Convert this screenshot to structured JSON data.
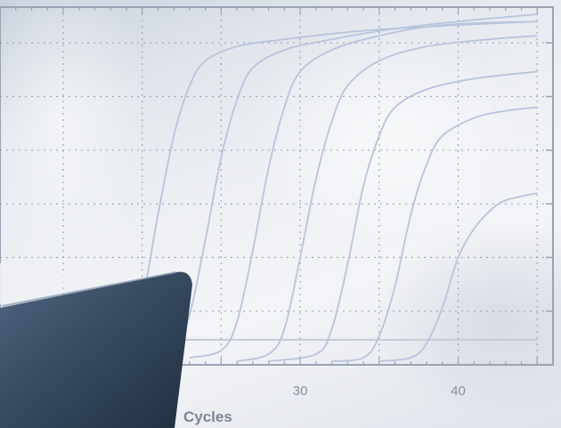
{
  "chart_data": {
    "type": "line",
    "title": "",
    "xlabel": "Cycles",
    "ylabel": "",
    "xlim": [
      11,
      46
    ],
    "ylim": [
      0,
      100
    ],
    "x_ticks": [
      30,
      40
    ],
    "grid": true,
    "legend": "none",
    "line_color": "#b8c4dc",
    "baseline_color": "#c4cad6",
    "series": [
      {
        "values": [
          [
            18,
            3
          ],
          [
            19,
            6
          ],
          [
            20,
            18
          ],
          [
            21,
            42
          ],
          [
            22,
            64
          ],
          [
            23,
            78
          ],
          [
            24,
            85
          ],
          [
            26,
            89
          ],
          [
            29,
            91
          ],
          [
            33,
            93
          ],
          [
            36,
            94
          ],
          [
            40,
            95
          ],
          [
            45,
            96
          ]
        ]
      },
      {
        "values": [
          [
            20,
            2
          ],
          [
            22,
            4
          ],
          [
            23,
            14
          ],
          [
            24,
            35
          ],
          [
            25,
            58
          ],
          [
            26,
            74
          ],
          [
            27,
            83
          ],
          [
            29,
            88
          ],
          [
            32,
            91
          ],
          [
            36,
            94
          ],
          [
            40,
            96
          ],
          [
            45,
            98
          ]
        ]
      },
      {
        "values": [
          [
            23,
            2
          ],
          [
            25,
            4
          ],
          [
            26,
            12
          ],
          [
            27,
            32
          ],
          [
            28,
            55
          ],
          [
            29,
            72
          ],
          [
            30,
            82
          ],
          [
            32,
            88
          ],
          [
            35,
            92
          ],
          [
            39,
            95
          ],
          [
            45,
            96
          ]
        ]
      },
      {
        "values": [
          [
            26,
            1
          ],
          [
            28,
            3
          ],
          [
            29,
            10
          ],
          [
            30,
            30
          ],
          [
            31,
            52
          ],
          [
            32,
            68
          ],
          [
            33,
            78
          ],
          [
            35,
            85
          ],
          [
            38,
            89
          ],
          [
            42,
            91
          ],
          [
            45,
            92
          ]
        ]
      },
      {
        "values": [
          [
            28,
            1
          ],
          [
            31,
            3
          ],
          [
            32,
            10
          ],
          [
            33,
            28
          ],
          [
            34,
            50
          ],
          [
            35,
            64
          ],
          [
            36,
            72
          ],
          [
            38,
            77
          ],
          [
            41,
            80
          ],
          [
            45,
            82
          ]
        ]
      },
      {
        "values": [
          [
            32,
            1
          ],
          [
            34,
            2
          ],
          [
            35,
            8
          ],
          [
            36,
            22
          ],
          [
            37,
            42
          ],
          [
            38,
            56
          ],
          [
            39,
            64
          ],
          [
            41,
            69
          ],
          [
            43,
            71
          ],
          [
            45,
            72
          ]
        ]
      },
      {
        "values": [
          [
            35,
            1
          ],
          [
            37,
            2
          ],
          [
            38,
            6
          ],
          [
            39,
            16
          ],
          [
            40,
            30
          ],
          [
            41,
            38
          ],
          [
            42,
            43
          ],
          [
            43,
            46
          ],
          [
            45,
            48
          ]
        ]
      }
    ],
    "baseline": 7
  }
}
